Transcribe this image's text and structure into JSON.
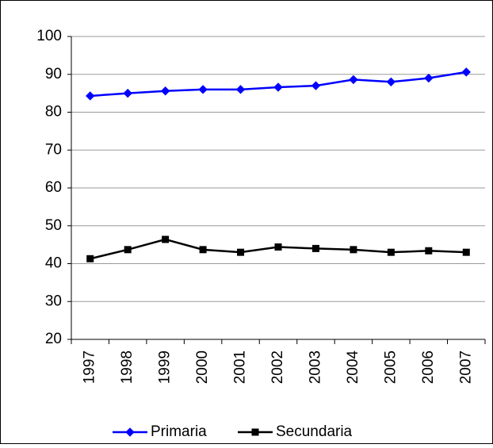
{
  "chart_data": {
    "type": "line",
    "categories": [
      "1997",
      "1998",
      "1999",
      "2000",
      "2001",
      "2002",
      "2003",
      "2004",
      "2005",
      "2006",
      "2007"
    ],
    "series": [
      {
        "name": "Primaria",
        "color": "#0000ff",
        "marker": "diamond",
        "values": [
          84.3,
          85,
          85.6,
          86,
          86,
          86.6,
          87,
          88.6,
          88,
          89,
          90.6
        ]
      },
      {
        "name": "Secundaria",
        "color": "#000000",
        "marker": "square",
        "values": [
          41.3,
          43.7,
          46.4,
          43.7,
          43,
          44.4,
          44,
          43.7,
          43,
          43.4,
          43
        ]
      }
    ],
    "ylim": [
      20,
      100
    ],
    "yticks": [
      20,
      30,
      40,
      50,
      60,
      70,
      80,
      90,
      100
    ],
    "grid": true,
    "legend": "bottom"
  }
}
